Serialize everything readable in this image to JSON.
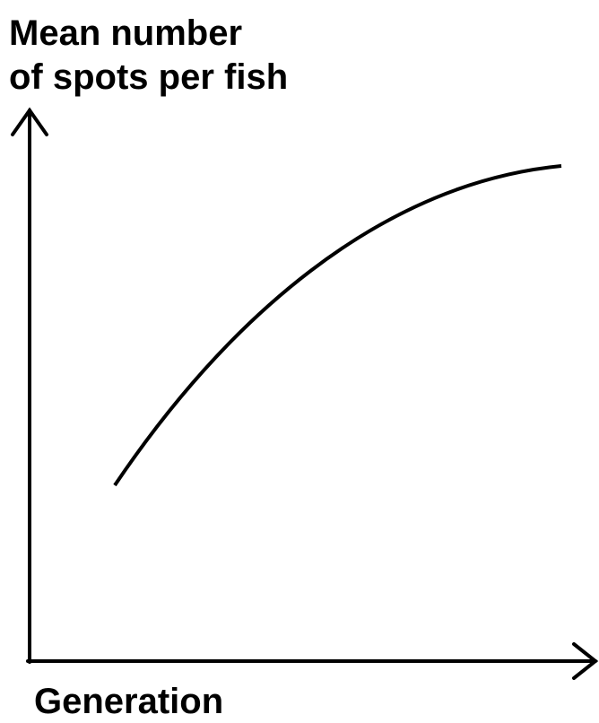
{
  "y_axis_label": [
    "Mean number",
    "of spots per fish"
  ],
  "x_axis_label": "Generation"
}
